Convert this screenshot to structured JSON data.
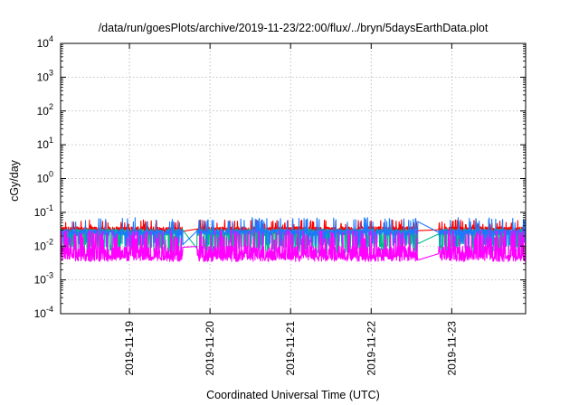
{
  "chart_data": {
    "type": "line",
    "title": "/data/run/goesPlots/archive/2019-11-23/22:00/flux/../bryn/5daysEarthData.plot",
    "xlabel": "Coordinated Universal Time (UTC)",
    "ylabel": "cGy/day",
    "y_scale": "log",
    "ylim": [
      0.0001,
      10000
    ],
    "y_ticks": [
      {
        "base": "10",
        "exp": "4"
      },
      {
        "base": "10",
        "exp": "3"
      },
      {
        "base": "10",
        "exp": "2"
      },
      {
        "base": "10",
        "exp": "1"
      },
      {
        "base": "10",
        "exp": "0"
      },
      {
        "base": "10",
        "exp": "-1"
      },
      {
        "base": "10",
        "exp": "-2"
      },
      {
        "base": "10",
        "exp": "-3"
      },
      {
        "base": "10",
        "exp": "-4"
      }
    ],
    "x_range": [
      "2019-11-18 03:30",
      "2019-11-23 22:00"
    ],
    "x_ticks": [
      "2019-11-19",
      "2019-11-20",
      "2019-11-21",
      "2019-11-22",
      "2019-11-23"
    ],
    "grid": true,
    "data_gaps": [
      [
        "2019-11-19 16:00",
        "2019-11-19 20:00"
      ],
      [
        "2019-11-22 14:00",
        "2019-11-22 20:00"
      ]
    ],
    "series": [
      {
        "color": "#ff0000",
        "baseline": 0.03,
        "low": 0.02,
        "high": 0.06
      },
      {
        "color": "#00bb88",
        "baseline": 0.025,
        "low": 0.006,
        "high": 0.05
      },
      {
        "color": "#1e78ff",
        "baseline": 0.025,
        "low": 0.009,
        "high": 0.07
      },
      {
        "color": "#ff00ff",
        "baseline": 0.005,
        "low": 0.0035,
        "high": 0.03
      }
    ]
  }
}
